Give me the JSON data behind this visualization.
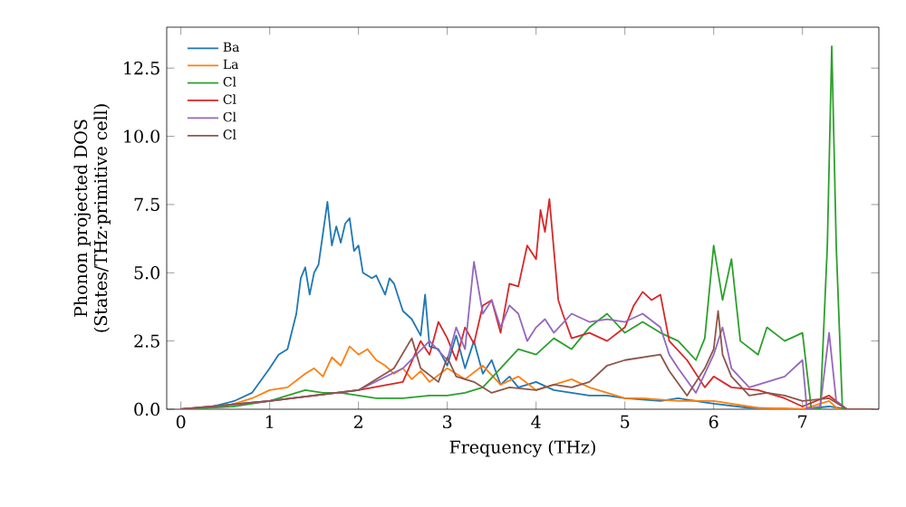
{
  "chart_data": {
    "type": "line",
    "xlabel": "Frequency (THz)",
    "ylabel": "Phonon projected DOS\n(States/THz·primitive cell)",
    "xlim": [
      -0.16,
      7.86
    ],
    "ylim": [
      0,
      14
    ],
    "xticks": [
      0,
      1,
      2,
      3,
      4,
      5,
      6,
      7
    ],
    "yticks": [
      {
        "value": 0,
        "label": "0.0"
      },
      {
        "value": 2.5,
        "label": "2.5"
      },
      {
        "value": 5,
        "label": "5.0"
      },
      {
        "value": 7.5,
        "label": "7.5"
      },
      {
        "value": 10,
        "label": "10.0"
      },
      {
        "value": 12.5,
        "label": "12.5"
      }
    ],
    "legend": "top left",
    "grid": false,
    "marker": "none",
    "line_style": "solid",
    "series": [
      {
        "name": "Ba",
        "color": "#1f77b4",
        "x": [
          0,
          0.3,
          0.6,
          0.8,
          1.0,
          1.1,
          1.2,
          1.3,
          1.35,
          1.4,
          1.45,
          1.5,
          1.55,
          1.65,
          1.7,
          1.75,
          1.8,
          1.85,
          1.9,
          1.95,
          2.0,
          2.05,
          2.15,
          2.2,
          2.3,
          2.35,
          2.4,
          2.5,
          2.6,
          2.7,
          2.75,
          2.8,
          2.9,
          3.0,
          3.1,
          3.2,
          3.3,
          3.4,
          3.5,
          3.6,
          3.7,
          3.8,
          4.0,
          4.2,
          4.4,
          4.6,
          4.8,
          5.0,
          5.4,
          5.6,
          6.0,
          6.4,
          7.0,
          7.3,
          7.5,
          7.8
        ],
        "values": [
          0,
          0.05,
          0.3,
          0.6,
          1.5,
          2,
          2.2,
          3.5,
          4.8,
          5.2,
          4.2,
          5,
          5.3,
          7.6,
          6,
          6.7,
          6.1,
          6.8,
          7,
          5.8,
          6,
          5,
          4.8,
          4.9,
          4.2,
          4.8,
          4.6,
          3.6,
          3.3,
          2.7,
          4.2,
          2.3,
          2.2,
          1.6,
          2.7,
          1.5,
          2.5,
          1.3,
          1.8,
          0.9,
          1.2,
          0.8,
          1.0,
          0.7,
          0.6,
          0.5,
          0.5,
          0.4,
          0.3,
          0.4,
          0.2,
          0.05,
          0,
          0.1,
          0,
          0
        ]
      },
      {
        "name": "La",
        "color": "#ff7f0e",
        "x": [
          0,
          0.5,
          0.8,
          1.0,
          1.2,
          1.4,
          1.5,
          1.6,
          1.7,
          1.8,
          1.9,
          2.0,
          2.1,
          2.2,
          2.3,
          2.4,
          2.5,
          2.6,
          2.7,
          2.8,
          3.0,
          3.2,
          3.4,
          3.6,
          3.8,
          4.0,
          4.2,
          4.4,
          4.6,
          4.8,
          5.0,
          5.2,
          5.6,
          6.0,
          6.2,
          6.5,
          7.0,
          7.3,
          7.4,
          7.8
        ],
        "values": [
          0,
          0.1,
          0.4,
          0.7,
          0.8,
          1.3,
          1.5,
          1.2,
          1.9,
          1.6,
          2.3,
          2.0,
          2.2,
          1.8,
          1.6,
          1.3,
          1.5,
          1.1,
          1.4,
          1.0,
          1.5,
          1.1,
          1.6,
          0.9,
          1.2,
          0.7,
          0.9,
          1.1,
          0.8,
          0.6,
          0.4,
          0.4,
          0.3,
          0.3,
          0.2,
          0.05,
          0,
          0.3,
          0,
          0
        ]
      },
      {
        "name": "Cl",
        "color": "#2ca02c",
        "x": [
          0,
          0.6,
          1.0,
          1.2,
          1.4,
          1.6,
          1.8,
          2.0,
          2.2,
          2.5,
          2.8,
          3.0,
          3.2,
          3.4,
          3.6,
          3.8,
          4.0,
          4.2,
          4.4,
          4.6,
          4.8,
          5.0,
          5.2,
          5.4,
          5.6,
          5.8,
          5.9,
          6.0,
          6.1,
          6.2,
          6.3,
          6.5,
          6.6,
          6.8,
          7.0,
          7.1,
          7.2,
          7.28,
          7.33,
          7.38,
          7.45,
          7.8
        ],
        "values": [
          0,
          0.1,
          0.3,
          0.5,
          0.7,
          0.6,
          0.6,
          0.5,
          0.4,
          0.4,
          0.5,
          0.5,
          0.6,
          0.8,
          1.5,
          2.2,
          2.0,
          2.6,
          2.2,
          3.0,
          3.5,
          2.8,
          3.2,
          2.8,
          2.5,
          1.8,
          2.6,
          6.0,
          4.0,
          5.5,
          2.5,
          2.0,
          3.0,
          2.5,
          2.8,
          0,
          0,
          6,
          13.3,
          6,
          0,
          0
        ]
      },
      {
        "name": "Cl",
        "color": "#d62728",
        "x": [
          0,
          1.0,
          1.5,
          2.0,
          2.5,
          2.7,
          2.8,
          2.9,
          3.0,
          3.1,
          3.2,
          3.3,
          3.4,
          3.5,
          3.6,
          3.7,
          3.8,
          3.9,
          4.0,
          4.05,
          4.1,
          4.15,
          4.25,
          4.3,
          4.4,
          4.6,
          4.8,
          5.0,
          5.1,
          5.2,
          5.3,
          5.4,
          5.5,
          5.7,
          5.9,
          6.0,
          6.2,
          6.5,
          6.8,
          7.0,
          7.3,
          7.5,
          7.8
        ],
        "values": [
          0,
          0.3,
          0.5,
          0.7,
          1.0,
          2.5,
          2.0,
          3.2,
          2.6,
          1.8,
          3.0,
          2.4,
          3.8,
          4.0,
          2.8,
          4.6,
          4.5,
          6.0,
          5.5,
          7.3,
          6.5,
          7.7,
          4.0,
          3.5,
          2.6,
          2.8,
          2.5,
          3.0,
          3.8,
          4.3,
          4.0,
          4.2,
          2.5,
          1.8,
          0.8,
          1.2,
          0.8,
          0.7,
          0.4,
          0.1,
          0.5,
          0,
          0
        ]
      },
      {
        "name": "Cl",
        "color": "#9467bd",
        "x": [
          0,
          1.0,
          1.5,
          2.0,
          2.5,
          2.8,
          3.0,
          3.1,
          3.2,
          3.3,
          3.4,
          3.5,
          3.6,
          3.7,
          3.8,
          3.9,
          4.0,
          4.1,
          4.2,
          4.4,
          4.6,
          4.8,
          5.0,
          5.2,
          5.4,
          5.5,
          5.6,
          5.8,
          6.0,
          6.1,
          6.2,
          6.4,
          6.6,
          6.8,
          7.0,
          7.05,
          7.2,
          7.3,
          7.38,
          7.5,
          7.8
        ],
        "values": [
          0,
          0.3,
          0.5,
          0.7,
          1.5,
          2.5,
          1.8,
          3.0,
          2.2,
          5.4,
          3.5,
          4.0,
          3.0,
          3.8,
          3.5,
          2.5,
          3.0,
          3.3,
          2.8,
          3.5,
          3.2,
          3.3,
          3.2,
          3.5,
          3.0,
          2.0,
          1.5,
          0.6,
          2.0,
          3.0,
          1.5,
          0.8,
          1.0,
          1.2,
          1.8,
          0,
          0.1,
          2.8,
          0.3,
          0,
          0
        ]
      },
      {
        "name": "Cl",
        "color": "#8c564b",
        "x": [
          0,
          1.0,
          1.5,
          2.0,
          2.4,
          2.6,
          2.7,
          2.9,
          3.0,
          3.1,
          3.3,
          3.5,
          3.7,
          4.0,
          4.2,
          4.4,
          4.6,
          4.8,
          5.0,
          5.2,
          5.4,
          5.5,
          5.7,
          5.9,
          6.0,
          6.05,
          6.1,
          6.2,
          6.4,
          6.6,
          6.8,
          7.0,
          7.3,
          7.5,
          7.8
        ],
        "values": [
          0,
          0.3,
          0.5,
          0.7,
          1.5,
          2.6,
          1.5,
          1.0,
          1.9,
          1.2,
          1.0,
          0.6,
          0.8,
          0.7,
          0.9,
          0.8,
          1.0,
          1.6,
          1.8,
          1.9,
          2.0,
          1.4,
          0.5,
          1.5,
          2.2,
          3.6,
          2.0,
          1.2,
          0.5,
          0.6,
          0.5,
          0.3,
          0.4,
          0,
          0
        ]
      }
    ]
  }
}
